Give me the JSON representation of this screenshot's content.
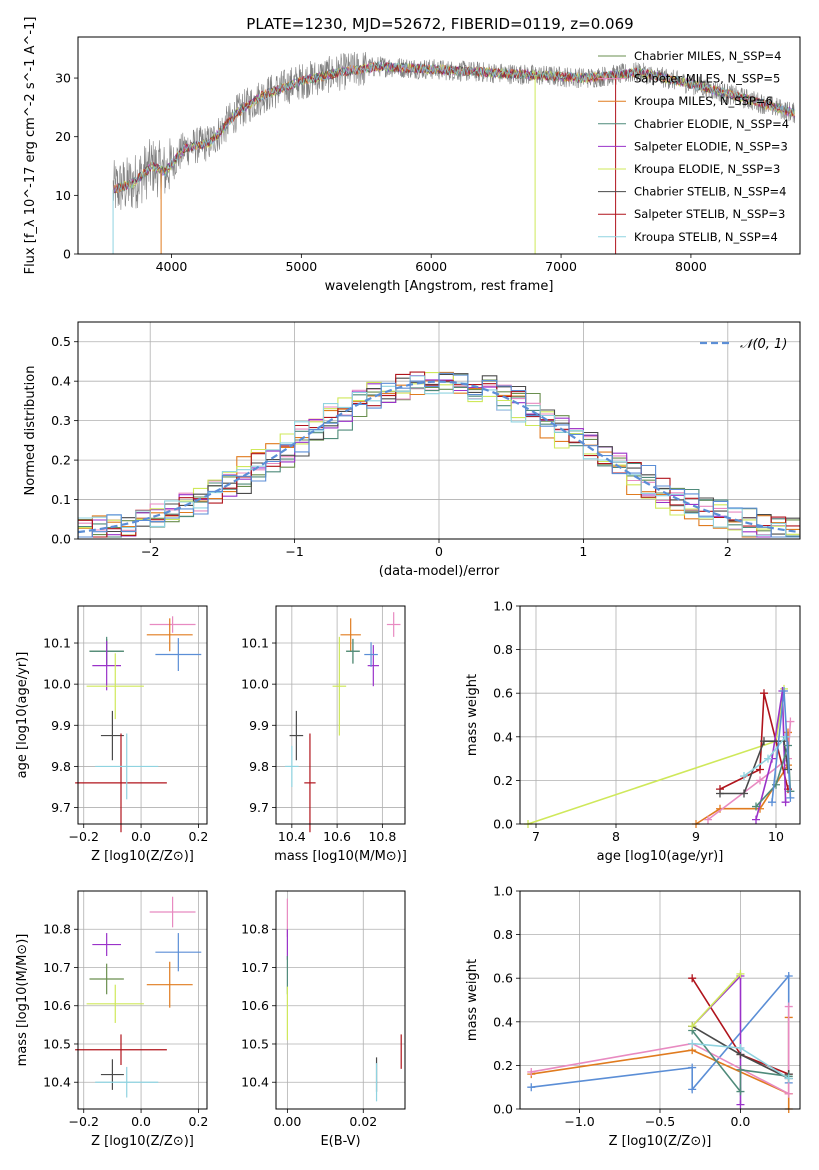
{
  "figure": {
    "title": "PLATE=1230, MJD=52672, FIBERID=0119, z=0.069"
  },
  "chart_data": [
    {
      "id": "spectrum",
      "type": "line",
      "xlabel": "wavelength [Angstrom, rest frame]",
      "ylabel": "Flux [f_λ 10^-17 erg cm^-2 s^-1 A^-1]",
      "xlim": [
        3280,
        8840
      ],
      "ylim": [
        0,
        37
      ],
      "xticks": [
        4000,
        5000,
        6000,
        7000,
        8000
      ],
      "yticks": [
        0,
        10,
        20,
        30
      ],
      "grid": false,
      "legend_position": "top-right",
      "series": [
        {
          "name": "Chabrier MILES, N_SSP=4",
          "color": "#6a8f4f"
        },
        {
          "name": "Salpeter MILES, N_SSP=5",
          "color": "#e88ac1"
        },
        {
          "name": "Kroupa MILES, N_SSP=6",
          "color": "#e07b1f"
        },
        {
          "name": "Chabrier ELODIE, N_SSP=4",
          "color": "#4f8a7a"
        },
        {
          "name": "Salpeter ELODIE, N_SSP=3",
          "color": "#9a32c9"
        },
        {
          "name": "Kroupa ELODIE, N_SSP=3",
          "color": "#cfe85a"
        },
        {
          "name": "Chabrier STELIB, N_SSP=4",
          "color": "#4a4a4a"
        },
        {
          "name": "Salpeter STELIB, N_SSP=3",
          "color": "#b0141c"
        },
        {
          "name": "Kroupa STELIB, N_SSP=4",
          "color": "#8fd3e0"
        }
      ],
      "continuum": {
        "x": [
          3550,
          3700,
          3850,
          3950,
          4100,
          4300,
          4500,
          4700,
          5000,
          5300,
          5600,
          6000,
          6400,
          6800,
          7200,
          7600,
          8000,
          8500,
          8800
        ],
        "y": [
          11,
          12,
          15,
          14,
          18,
          19,
          24,
          27,
          29.5,
          31,
          32,
          31.5,
          31,
          30.5,
          30,
          31,
          29,
          26,
          24
        ]
      }
    },
    {
      "id": "residuals",
      "type": "bar",
      "xlabel": "(data-model)/error",
      "ylabel": "Normed distribution",
      "xlim": [
        -2.5,
        2.5
      ],
      "ylim": [
        0,
        0.55
      ],
      "xticks": [
        -2,
        -1,
        0,
        1,
        2
      ],
      "yticks": [
        0.0,
        0.1,
        0.2,
        0.3,
        0.4,
        0.5
      ],
      "grid": true,
      "legend_position": "top-right",
      "reference": {
        "name": "𝒩(0, 1)",
        "color": "#5b8ed6"
      },
      "bin_width": 0.1
    },
    {
      "id": "age-vs-Z",
      "type": "scatter",
      "xlabel": "Z [log10(Z/Z⊙)]",
      "ylabel": "age  [log10(age/yr)]",
      "xlim": [
        -0.22,
        0.23
      ],
      "ylim": [
        9.66,
        10.19
      ],
      "xticks": [
        -0.2,
        0.0,
        0.2
      ],
      "yticks": [
        9.7,
        9.8,
        9.9,
        10.0,
        10.1
      ],
      "grid": true,
      "points": [
        {
          "series": "Chabrier MILES",
          "color": "#6a8f4f",
          "x": -0.12,
          "y": 10.08,
          "xerr": 0.06,
          "yerr": 0.03
        },
        {
          "series": "Salpeter MILES",
          "color": "#e88ac1",
          "x": 0.11,
          "y": 10.145,
          "xerr": 0.08,
          "yerr": 0.02
        },
        {
          "series": "Kroupa MILES",
          "color": "#e07b1f",
          "x": 0.1,
          "y": 10.12,
          "xerr": 0.08,
          "yerr": 0.04
        },
        {
          "series": "Chabrier ELODIE",
          "color": "#4f8a7a",
          "x": -0.12,
          "y": 10.08,
          "xerr": 0.06,
          "yerr": 0.035
        },
        {
          "series": "Salpeter ELODIE",
          "color": "#9a32c9",
          "x": -0.12,
          "y": 10.045,
          "xerr": 0.05,
          "yerr": 0.06
        },
        {
          "series": "Kroupa ELODIE",
          "color": "#cfe85a",
          "x": -0.09,
          "y": 9.995,
          "xerr": 0.1,
          "yerr": 0.08
        },
        {
          "series": "Chabrier STELIB",
          "color": "#4a4a4a",
          "x": -0.1,
          "y": 9.875,
          "xerr": 0.04,
          "yerr": 0.06
        },
        {
          "series": "Salpeter STELIB",
          "color": "#b0141c",
          "x": -0.07,
          "y": 9.76,
          "xerr": 0.16,
          "yerr": 0.12
        },
        {
          "series": "Kroupa STELIB",
          "color": "#8fd3e0",
          "x": -0.05,
          "y": 9.8,
          "xerr": 0.11,
          "yerr": 0.08
        },
        {
          "series": "blue",
          "color": "#5b8ed6",
          "x": 0.13,
          "y": 10.072,
          "xerr": 0.08,
          "yerr": 0.04
        }
      ]
    },
    {
      "id": "age-vs-mass",
      "type": "scatter",
      "xlabel": "mass [log10(M/M⊙)]",
      "xlim": [
        10.33,
        10.9
      ],
      "ylim": [
        9.66,
        10.19
      ],
      "xticks": [
        10.4,
        10.6,
        10.8
      ],
      "yticks": [
        9.7,
        9.8,
        9.9,
        10.0,
        10.1
      ],
      "grid": true,
      "points": [
        {
          "color": "#6a8f4f",
          "x": 10.67,
          "y": 10.08,
          "xerr": 0.03,
          "yerr": 0.03
        },
        {
          "color": "#e88ac1",
          "x": 10.85,
          "y": 10.145,
          "xerr": 0.03,
          "yerr": 0.03
        },
        {
          "color": "#e07b1f",
          "x": 10.66,
          "y": 10.12,
          "xerr": 0.045,
          "yerr": 0.04
        },
        {
          "color": "#4f8a7a",
          "x": 10.67,
          "y": 10.08,
          "xerr": 0.03,
          "yerr": 0.03
        },
        {
          "color": "#9a32c9",
          "x": 10.76,
          "y": 10.045,
          "xerr": 0.025,
          "yerr": 0.05
        },
        {
          "color": "#cfe85a",
          "x": 10.61,
          "y": 9.995,
          "xerr": 0.03,
          "yerr": 0.12
        },
        {
          "color": "#4a4a4a",
          "x": 10.42,
          "y": 9.875,
          "xerr": 0.03,
          "yerr": 0.06
        },
        {
          "color": "#b0141c",
          "x": 10.48,
          "y": 9.76,
          "xerr": 0.025,
          "yerr": 0.12
        },
        {
          "color": "#8fd3e0",
          "x": 10.4,
          "y": 9.8,
          "xerr": 0.03,
          "yerr": 0.05
        },
        {
          "color": "#5b8ed6",
          "x": 10.75,
          "y": 10.072,
          "xerr": 0.03,
          "yerr": 0.03
        }
      ]
    },
    {
      "id": "massweight-vs-age",
      "type": "line",
      "xlabel": "age  [log10(age/yr)]",
      "ylabel": "mass weight",
      "xlim": [
        6.8,
        10.3
      ],
      "ylim": [
        0.0,
        1.0
      ],
      "xticks": [
        7,
        8,
        9,
        10
      ],
      "yticks": [
        0.0,
        0.2,
        0.4,
        0.6,
        0.8,
        1.0
      ],
      "grid": true,
      "series": [
        {
          "color": "#cfe85a",
          "x": [
            6.9,
            10.0,
            10.1
          ],
          "y": [
            0.0,
            0.38,
            0.62
          ]
        },
        {
          "color": "#e07b1f",
          "x": [
            9.0,
            9.3,
            9.8,
            10.15,
            10.15
          ],
          "y": [
            0.0,
            0.07,
            0.07,
            0.27,
            0.42
          ]
        },
        {
          "color": "#e88ac1",
          "x": [
            9.15,
            9.8,
            10.15,
            10.18
          ],
          "y": [
            0.02,
            0.2,
            0.3,
            0.47
          ]
        },
        {
          "color": "#b0141c",
          "x": [
            9.3,
            9.8,
            9.85,
            10.15
          ],
          "y": [
            0.16,
            0.25,
            0.6,
            0.16
          ]
        },
        {
          "color": "#9a32c9",
          "x": [
            9.75,
            9.95,
            10.08,
            10.12
          ],
          "y": [
            0.02,
            0.3,
            0.61,
            0.1
          ]
        },
        {
          "color": "#4a4a4a",
          "x": [
            9.3,
            9.6,
            9.85,
            10.1,
            10.15
          ],
          "y": [
            0.14,
            0.14,
            0.38,
            0.38,
            0.25
          ]
        },
        {
          "color": "#4f8a7a",
          "x": [
            9.75,
            10.0,
            10.15,
            10.18
          ],
          "y": [
            0.08,
            0.18,
            0.36,
            0.15
          ]
        },
        {
          "color": "#8fd3e0",
          "x": [
            9.6,
            9.9,
            10.12
          ],
          "y": [
            0.22,
            0.3,
            0.4
          ]
        },
        {
          "color": "#5b8ed6",
          "x": [
            9.95,
            10.1,
            10.18
          ],
          "y": [
            0.1,
            0.61,
            0.12
          ]
        }
      ]
    },
    {
      "id": "mass-vs-Z",
      "type": "scatter",
      "xlabel": "Z [log10(Z/Z⊙)]",
      "ylabel": "mass [log10(M/M⊙)]",
      "xlim": [
        -0.22,
        0.23
      ],
      "ylim": [
        10.33,
        10.9
      ],
      "xticks": [
        -0.2,
        0.0,
        0.2
      ],
      "yticks": [
        10.4,
        10.5,
        10.6,
        10.7,
        10.8
      ],
      "grid": true,
      "points": [
        {
          "color": "#6a8f4f",
          "x": -0.12,
          "y": 10.67,
          "xerr": 0.06,
          "yerr": 0.04
        },
        {
          "color": "#e88ac1",
          "x": 0.11,
          "y": 10.845,
          "xerr": 0.08,
          "yerr": 0.04
        },
        {
          "color": "#e07b1f",
          "x": 0.1,
          "y": 10.655,
          "xerr": 0.08,
          "yerr": 0.06
        },
        {
          "color": "#9a32c9",
          "x": -0.12,
          "y": 10.76,
          "xerr": 0.05,
          "yerr": 0.03
        },
        {
          "color": "#cfe85a",
          "x": -0.09,
          "y": 10.605,
          "xerr": 0.1,
          "yerr": 0.05
        },
        {
          "color": "#4a4a4a",
          "x": -0.1,
          "y": 10.42,
          "xerr": 0.04,
          "yerr": 0.04
        },
        {
          "color": "#b0141c",
          "x": -0.07,
          "y": 10.485,
          "xerr": 0.16,
          "yerr": 0.04
        },
        {
          "color": "#8fd3e0",
          "x": -0.05,
          "y": 10.4,
          "xerr": 0.11,
          "yerr": 0.04
        },
        {
          "color": "#5b8ed6",
          "x": 0.13,
          "y": 10.74,
          "xerr": 0.08,
          "yerr": 0.05
        }
      ]
    },
    {
      "id": "mass-vs-ebv",
      "type": "scatter",
      "xlabel": "E(B-V)",
      "xlim": [
        -0.003,
        0.031
      ],
      "ylim": [
        10.33,
        10.9
      ],
      "xticks": [
        0.0,
        0.02
      ],
      "yticks": [
        10.4,
        10.5,
        10.6,
        10.7,
        10.8
      ],
      "grid": true,
      "points": [
        {
          "color": "#e88ac1",
          "x": 0.0,
          "y": 10.83,
          "xerr": 0,
          "yerr": 0.05
        },
        {
          "color": "#9a32c9",
          "x": 0.0,
          "y": 10.76,
          "xerr": 0,
          "yerr": 0.04
        },
        {
          "color": "#4f8a7a",
          "x": 0.0,
          "y": 10.68,
          "xerr": 0,
          "yerr": 0.05
        },
        {
          "color": "#cfe85a",
          "x": 0.0,
          "y": 10.58,
          "xerr": 0,
          "yerr": 0.07
        },
        {
          "color": "#4a4a4a",
          "x": 0.0235,
          "y": 10.42,
          "xerr": 0,
          "yerr": 0.045
        },
        {
          "color": "#8fd3e0",
          "x": 0.0235,
          "y": 10.4,
          "xerr": 0,
          "yerr": 0.05
        },
        {
          "color": "#b0141c",
          "x": 0.03,
          "y": 10.48,
          "xerr": 0,
          "yerr": 0.045
        }
      ]
    },
    {
      "id": "massweight-vs-Z",
      "type": "line",
      "xlabel": "Z [log10(Z/Z⊙)]",
      "ylabel": "mass weight",
      "xlim": [
        -1.37,
        0.37
      ],
      "ylim": [
        0.0,
        1.0
      ],
      "xticks": [
        -1.0,
        -0.5,
        0.0
      ],
      "yticks": [
        0.0,
        0.2,
        0.4,
        0.6,
        0.8,
        1.0
      ],
      "grid": true,
      "series": [
        {
          "color": "#5b8ed6",
          "x": [
            -1.3,
            -0.3,
            -0.3,
            0.3,
            0.3
          ],
          "y": [
            0.1,
            0.19,
            0.09,
            0.61,
            0.12
          ]
        },
        {
          "color": "#e07b1f",
          "x": [
            -1.3,
            -0.3,
            0.3,
            0.3,
            0.3
          ],
          "y": [
            0.16,
            0.27,
            0.07,
            0.42,
            0.0
          ]
        },
        {
          "color": "#e88ac1",
          "x": [
            -1.3,
            -0.3,
            0.3,
            0.3
          ],
          "y": [
            0.17,
            0.3,
            0.07,
            0.47
          ]
        },
        {
          "color": "#b0141c",
          "x": [
            -0.3,
            0.0,
            0.3
          ],
          "y": [
            0.6,
            0.25,
            0.16
          ]
        },
        {
          "color": "#9a32c9",
          "x": [
            -0.3,
            0.0,
            0.0
          ],
          "y": [
            0.38,
            0.61,
            0.02
          ]
        },
        {
          "color": "#4a4a4a",
          "x": [
            -0.3,
            0.0,
            0.3,
            0.3
          ],
          "y": [
            0.38,
            0.25,
            0.14,
            0.16
          ]
        },
        {
          "color": "#4f8a7a",
          "x": [
            -0.3,
            0.0,
            0.0,
            0.3
          ],
          "y": [
            0.36,
            0.08,
            0.18,
            0.15
          ]
        },
        {
          "color": "#cfe85a",
          "x": [
            -0.3,
            0.0
          ],
          "y": [
            0.38,
            0.62
          ]
        },
        {
          "color": "#8fd3e0",
          "x": [
            -0.3,
            0.0,
            0.3
          ],
          "y": [
            0.3,
            0.28,
            0.14
          ]
        }
      ]
    }
  ]
}
